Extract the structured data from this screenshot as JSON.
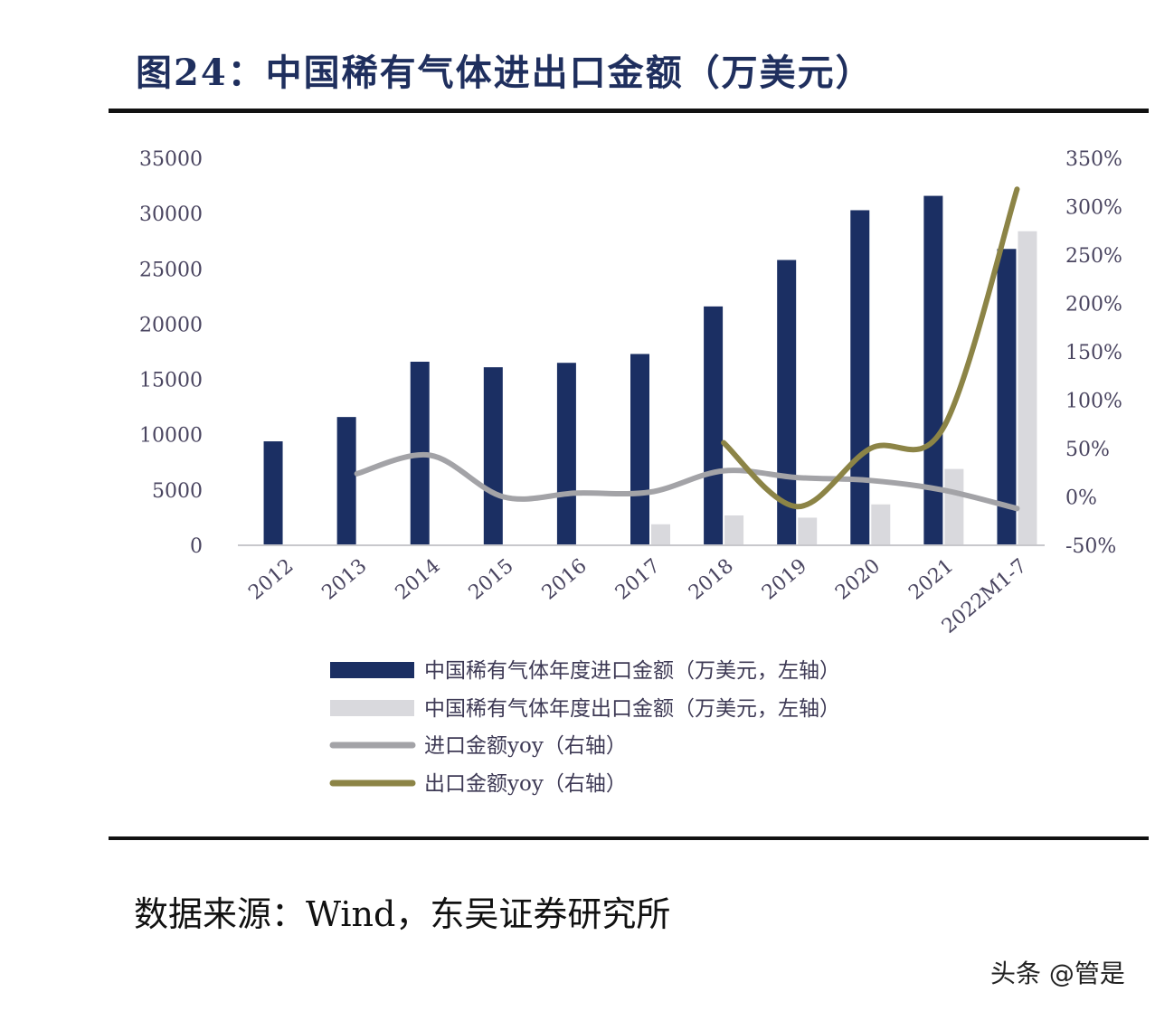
{
  "title": "图24：中国稀有气体进出口金额（万美元）",
  "source": "数据来源：Wind，东吴证券研究所",
  "watermark": "头条 @管是",
  "chart_data": {
    "type": "bar",
    "categories": [
      "2012",
      "2013",
      "2014",
      "2015",
      "2016",
      "2017",
      "2018",
      "2019",
      "2020",
      "2021",
      "2022M1-7"
    ],
    "y_left": {
      "min": 0,
      "max": 35000,
      "ticks": [
        "0",
        "5000",
        "10000",
        "15000",
        "20000",
        "25000",
        "30000",
        "35000"
      ]
    },
    "y_right": {
      "min": -50,
      "max": 350,
      "ticks": [
        "-50%",
        "0%",
        "50%",
        "100%",
        "150%",
        "200%",
        "250%",
        "300%",
        "350%"
      ]
    },
    "series": [
      {
        "name": "中国稀有气体年度进口金额（万美元，左轴）",
        "kind": "bar",
        "axis": "left",
        "color": "#1b2f63",
        "values": [
          9400,
          11600,
          16600,
          16100,
          16500,
          17300,
          21600,
          25800,
          30300,
          31600,
          26800
        ]
      },
      {
        "name": "中国稀有气体年度出口金额（万美元，左轴）",
        "kind": "bar",
        "axis": "left",
        "color": "#d9d9dd",
        "values": [
          null,
          null,
          null,
          null,
          null,
          1900,
          2700,
          2500,
          3700,
          6900,
          28400
        ]
      },
      {
        "name": "进口金额yoy（右轴）",
        "kind": "line",
        "axis": "right",
        "color": "#a3a3a7",
        "values": [
          null,
          24,
          43,
          0,
          4,
          5,
          27,
          20,
          17,
          7,
          -12
        ]
      },
      {
        "name": "出口金额yoy（右轴）",
        "kind": "line",
        "axis": "right",
        "color": "#8c8446",
        "values": [
          null,
          null,
          null,
          null,
          null,
          null,
          56,
          -10,
          50,
          72,
          318
        ]
      }
    ],
    "legend_position": "bottom",
    "grid": false
  }
}
